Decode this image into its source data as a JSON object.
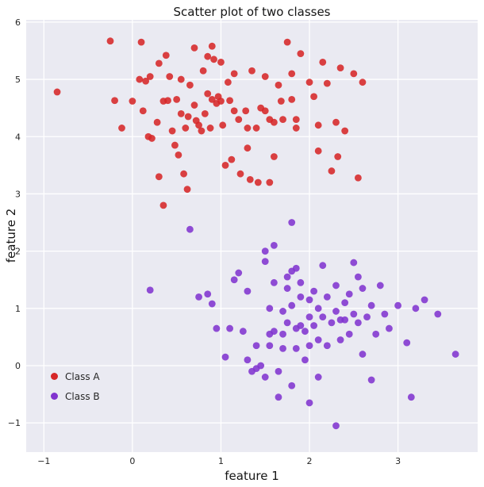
{
  "chart_data": {
    "type": "scatter",
    "title": "Scatter plot of two classes",
    "xlabel": "feature 1",
    "ylabel": "feature 2",
    "xlim": [
      -1.2,
      3.9
    ],
    "ylim": [
      -1.51,
      6.04
    ],
    "xticks": [
      -1,
      0,
      1,
      2,
      3
    ],
    "yticks": [
      -1,
      0,
      1,
      2,
      3,
      4,
      5,
      6
    ],
    "grid": true,
    "grid_color": "#ffffff",
    "background": "#eaeaf2",
    "tick_color": "#262626",
    "legend_position": "lower left",
    "marker_radius": 4.4,
    "series": [
      {
        "name": "Class A",
        "color": "#d62728",
        "points": [
          [
            -0.85,
            4.78
          ],
          [
            -0.25,
            5.67
          ],
          [
            -0.2,
            4.63
          ],
          [
            -0.12,
            4.15
          ],
          [
            0.0,
            4.62
          ],
          [
            0.1,
            5.65
          ],
          [
            0.08,
            5.0
          ],
          [
            0.15,
            4.97
          ],
          [
            0.2,
            5.05
          ],
          [
            0.12,
            4.45
          ],
          [
            0.18,
            4.0
          ],
          [
            0.22,
            3.97
          ],
          [
            0.3,
            5.28
          ],
          [
            0.28,
            4.25
          ],
          [
            0.35,
            4.62
          ],
          [
            0.38,
            5.42
          ],
          [
            0.42,
            5.05
          ],
          [
            0.4,
            4.63
          ],
          [
            0.45,
            4.1
          ],
          [
            0.48,
            3.85
          ],
          [
            0.5,
            4.65
          ],
          [
            0.52,
            3.68
          ],
          [
            0.55,
            5.0
          ],
          [
            0.55,
            4.4
          ],
          [
            0.6,
            4.15
          ],
          [
            0.58,
            3.35
          ],
          [
            0.62,
            3.08
          ],
          [
            0.65,
            4.9
          ],
          [
            0.63,
            4.35
          ],
          [
            0.7,
            5.55
          ],
          [
            0.7,
            4.55
          ],
          [
            0.72,
            4.28
          ],
          [
            0.75,
            4.2
          ],
          [
            0.78,
            4.1
          ],
          [
            0.8,
            5.15
          ],
          [
            0.82,
            4.4
          ],
          [
            0.85,
            5.4
          ],
          [
            0.85,
            4.75
          ],
          [
            0.88,
            4.15
          ],
          [
            0.9,
            5.58
          ],
          [
            0.92,
            5.35
          ],
          [
            0.9,
            4.65
          ],
          [
            0.95,
            4.58
          ],
          [
            0.97,
            4.7
          ],
          [
            1.0,
            5.3
          ],
          [
            1.0,
            4.62
          ],
          [
            1.02,
            4.2
          ],
          [
            1.05,
            3.5
          ],
          [
            1.08,
            4.95
          ],
          [
            1.1,
            4.63
          ],
          [
            1.12,
            3.6
          ],
          [
            1.15,
            5.1
          ],
          [
            1.15,
            4.45
          ],
          [
            1.2,
            4.3
          ],
          [
            1.22,
            3.35
          ],
          [
            1.28,
            4.45
          ],
          [
            1.3,
            4.15
          ],
          [
            1.3,
            3.8
          ],
          [
            1.35,
            5.15
          ],
          [
            1.33,
            3.25
          ],
          [
            1.4,
            4.15
          ],
          [
            1.42,
            3.2
          ],
          [
            1.45,
            4.5
          ],
          [
            1.5,
            5.05
          ],
          [
            1.5,
            4.45
          ],
          [
            1.55,
            4.3
          ],
          [
            1.55,
            3.2
          ],
          [
            1.6,
            4.25
          ],
          [
            1.6,
            3.65
          ],
          [
            1.65,
            4.9
          ],
          [
            1.68,
            4.62
          ],
          [
            1.7,
            4.3
          ],
          [
            1.75,
            5.65
          ],
          [
            1.8,
            5.1
          ],
          [
            1.8,
            4.65
          ],
          [
            1.85,
            4.3
          ],
          [
            1.85,
            4.15
          ],
          [
            1.9,
            5.45
          ],
          [
            2.0,
            4.95
          ],
          [
            2.05,
            4.7
          ],
          [
            2.1,
            4.2
          ],
          [
            2.1,
            3.75
          ],
          [
            2.15,
            5.3
          ],
          [
            2.2,
            4.93
          ],
          [
            2.25,
            3.4
          ],
          [
            2.3,
            4.25
          ],
          [
            2.32,
            3.65
          ],
          [
            2.35,
            5.2
          ],
          [
            2.4,
            4.1
          ],
          [
            2.5,
            5.1
          ],
          [
            2.55,
            3.28
          ],
          [
            2.6,
            4.95
          ],
          [
            0.3,
            3.3
          ],
          [
            0.35,
            2.8
          ]
        ]
      },
      {
        "name": "Class B",
        "color": "#8134cf",
        "points": [
          [
            0.2,
            1.32
          ],
          [
            0.65,
            2.38
          ],
          [
            0.75,
            1.2
          ],
          [
            0.85,
            1.25
          ],
          [
            0.9,
            1.08
          ],
          [
            0.95,
            0.65
          ],
          [
            1.05,
            0.15
          ],
          [
            1.1,
            0.65
          ],
          [
            1.15,
            1.5
          ],
          [
            1.2,
            1.62
          ],
          [
            1.25,
            0.6
          ],
          [
            1.3,
            1.3
          ],
          [
            1.3,
            0.1
          ],
          [
            1.35,
            -0.1
          ],
          [
            1.4,
            0.35
          ],
          [
            1.4,
            -0.05
          ],
          [
            1.45,
            0.0
          ],
          [
            1.5,
            2.0
          ],
          [
            1.5,
            1.82
          ],
          [
            1.5,
            -0.2
          ],
          [
            1.55,
            1.0
          ],
          [
            1.55,
            0.55
          ],
          [
            1.55,
            0.35
          ],
          [
            1.6,
            2.1
          ],
          [
            1.6,
            1.45
          ],
          [
            1.6,
            0.6
          ],
          [
            1.65,
            -0.1
          ],
          [
            1.65,
            -0.55
          ],
          [
            1.7,
            0.95
          ],
          [
            1.7,
            0.55
          ],
          [
            1.7,
            0.3
          ],
          [
            1.75,
            1.55
          ],
          [
            1.75,
            1.35
          ],
          [
            1.75,
            0.75
          ],
          [
            1.8,
            2.5
          ],
          [
            1.8,
            1.65
          ],
          [
            1.8,
            1.05
          ],
          [
            1.8,
            -0.35
          ],
          [
            1.85,
            1.7
          ],
          [
            1.85,
            0.65
          ],
          [
            1.85,
            0.3
          ],
          [
            1.9,
            1.45
          ],
          [
            1.9,
            1.2
          ],
          [
            1.9,
            0.7
          ],
          [
            1.95,
            0.6
          ],
          [
            1.95,
            0.1
          ],
          [
            2.0,
            1.15
          ],
          [
            2.0,
            0.85
          ],
          [
            2.0,
            0.35
          ],
          [
            2.0,
            -0.65
          ],
          [
            2.05,
            1.3
          ],
          [
            2.05,
            0.7
          ],
          [
            2.1,
            1.0
          ],
          [
            2.1,
            0.45
          ],
          [
            2.1,
            -0.2
          ],
          [
            2.15,
            1.75
          ],
          [
            2.15,
            0.85
          ],
          [
            2.2,
            1.2
          ],
          [
            2.2,
            0.35
          ],
          [
            2.25,
            0.75
          ],
          [
            2.3,
            1.4
          ],
          [
            2.3,
            0.95
          ],
          [
            2.3,
            -1.05
          ],
          [
            2.35,
            0.8
          ],
          [
            2.35,
            0.45
          ],
          [
            2.4,
            1.1
          ],
          [
            2.4,
            0.8
          ],
          [
            2.45,
            1.25
          ],
          [
            2.45,
            0.55
          ],
          [
            2.5,
            1.8
          ],
          [
            2.5,
            0.9
          ],
          [
            2.55,
            1.55
          ],
          [
            2.55,
            0.75
          ],
          [
            2.6,
            1.35
          ],
          [
            2.6,
            0.2
          ],
          [
            2.65,
            0.85
          ],
          [
            2.7,
            1.05
          ],
          [
            2.7,
            -0.25
          ],
          [
            2.75,
            0.55
          ],
          [
            2.8,
            1.4
          ],
          [
            2.85,
            0.9
          ],
          [
            2.9,
            0.65
          ],
          [
            3.0,
            1.05
          ],
          [
            3.1,
            0.4
          ],
          [
            3.15,
            -0.55
          ],
          [
            3.2,
            1.0
          ],
          [
            3.3,
            1.15
          ],
          [
            3.45,
            0.9
          ],
          [
            3.65,
            0.2
          ]
        ]
      }
    ]
  }
}
